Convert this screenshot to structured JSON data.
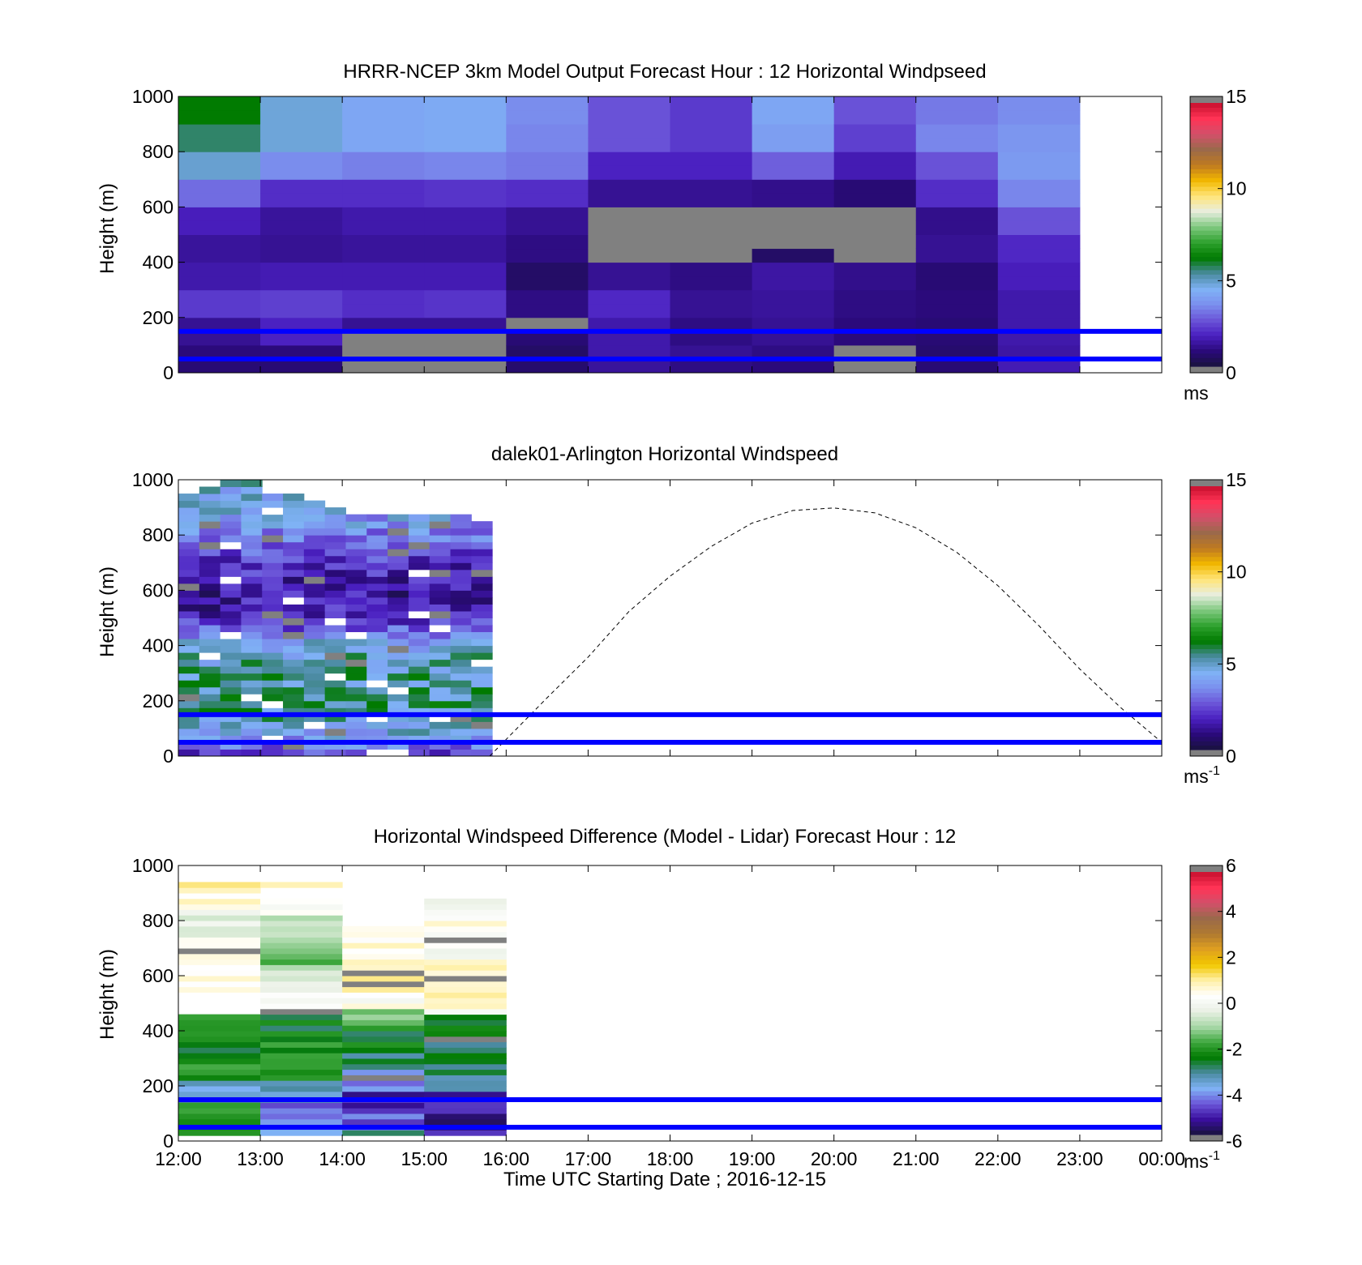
{
  "colors": {
    "hline": "#0000ff",
    "missing": "#808080",
    "speed_cmap": [
      "#18123c",
      "#2a0a7a",
      "#4a1fc0",
      "#6b55d8",
      "#7b8fee",
      "#7fb2f5",
      "#4a8aa0",
      "#007a00",
      "#2ea12e",
      "#7ec87e",
      "#e8eee0",
      "#ffe57a",
      "#f2b800",
      "#c07a20",
      "#9a6a4a",
      "#d2506a",
      "#ff3355",
      "#c8102e"
    ],
    "diff_cmap": [
      "#18123c",
      "#3a0f9e",
      "#6b55d8",
      "#7fb2f5",
      "#4a8aa0",
      "#007a00",
      "#3fa83f",
      "#a8d8a8",
      "#e9f0e4",
      "#ffffff",
      "#fff0a8",
      "#f2c800",
      "#e0a020",
      "#b07a30",
      "#9a6a4a",
      "#d2506a",
      "#ff3355",
      "#c8102e"
    ]
  },
  "chart_data": [
    {
      "type": "heatmap",
      "title": "HRRR-NCEP 3km Model Output   Forecast Hour : 12 Horizontal Windpseed",
      "ylabel": "Height (m)",
      "xlabel": "",
      "xlim": [
        12,
        24
      ],
      "ylim": [
        0,
        1000
      ],
      "x_ticks": [
        12,
        13,
        14,
        15,
        16,
        17,
        18,
        19,
        20,
        21,
        22,
        23,
        24
      ],
      "y_ticks": [
        0,
        200,
        400,
        600,
        800,
        1000
      ],
      "y_tick_labels": [
        "0",
        "200",
        "400",
        "600",
        "800",
        "1000"
      ],
      "colorbar": {
        "min": 0,
        "max": 15,
        "ticks": [
          0,
          5,
          10,
          15
        ],
        "tick_labels": [
          "0",
          "5",
          "10",
          "15"
        ],
        "unit": "ms",
        "unit_sup": ""
      },
      "hlines": [
        150,
        50
      ],
      "hour_cols": [
        {
          "start": 12,
          "profile": [
            [
              1000,
              6.2
            ],
            [
              900,
              5.6
            ],
            [
              800,
              4.8
            ],
            [
              700,
              3.0
            ],
            [
              600,
              1.7
            ],
            [
              500,
              1.3
            ],
            [
              400,
              1.5
            ],
            [
              300,
              2.2
            ],
            [
              200,
              1.2
            ],
            [
              100,
              0.9
            ],
            [
              25,
              0.8
            ]
          ]
        },
        {
          "start": 13,
          "profile": [
            [
              1000,
              4.7
            ],
            [
              900,
              4.7
            ],
            [
              800,
              3.5
            ],
            [
              700,
              2.0
            ],
            [
              600,
              1.3
            ],
            [
              500,
              1.2
            ],
            [
              400,
              1.6
            ],
            [
              300,
              2.3
            ],
            [
              200,
              1.8
            ],
            [
              100,
              0.9
            ],
            [
              25,
              0.8
            ]
          ]
        },
        {
          "start": 14,
          "profile": [
            [
              1000,
              4.1
            ],
            [
              900,
              4.1
            ],
            [
              800,
              3.3
            ],
            [
              700,
              2.0
            ],
            [
              600,
              1.5
            ],
            [
              500,
              1.3
            ],
            [
              400,
              1.6
            ],
            [
              300,
              2.0
            ],
            [
              200,
              1.2
            ],
            [
              130,
              -1
            ],
            [
              70,
              0.7
            ],
            [
              25,
              -1
            ]
          ]
        },
        {
          "start": 15,
          "profile": [
            [
              1000,
              4.2
            ],
            [
              900,
              4.2
            ],
            [
              800,
              3.4
            ],
            [
              700,
              2.1
            ],
            [
              600,
              1.5
            ],
            [
              500,
              1.3
            ],
            [
              400,
              1.6
            ],
            [
              300,
              2.1
            ],
            [
              200,
              1.2
            ],
            [
              130,
              -1
            ],
            [
              60,
              0.7
            ],
            [
              25,
              -1
            ]
          ]
        },
        {
          "start": 16,
          "profile": [
            [
              1000,
              3.5
            ],
            [
              900,
              3.4
            ],
            [
              800,
              3.2
            ],
            [
              700,
              2.0
            ],
            [
              600,
              1.2
            ],
            [
              500,
              1.0
            ],
            [
              400,
              0.6
            ],
            [
              300,
              1.0
            ],
            [
              220,
              -1
            ],
            [
              150,
              0.8
            ],
            [
              80,
              0.6
            ],
            [
              25,
              0.7
            ]
          ]
        },
        {
          "start": 17,
          "profile": [
            [
              1000,
              2.6
            ],
            [
              900,
              2.6
            ],
            [
              800,
              1.8
            ],
            [
              700,
              1.2
            ],
            [
              600,
              -1
            ],
            [
              500,
              -1
            ],
            [
              400,
              1.2
            ],
            [
              300,
              1.9
            ],
            [
              200,
              1.5
            ],
            [
              100,
              1.5
            ],
            [
              25,
              1.3
            ]
          ]
        },
        {
          "start": 18,
          "profile": [
            [
              1000,
              2.2
            ],
            [
              900,
              2.2
            ],
            [
              800,
              1.8
            ],
            [
              700,
              1.2
            ],
            [
              600,
              -1
            ],
            [
              500,
              -1
            ],
            [
              400,
              1.0
            ],
            [
              300,
              1.2
            ],
            [
              200,
              1.0
            ],
            [
              100,
              1.2
            ],
            [
              25,
              1.0
            ]
          ]
        },
        {
          "start": 19,
          "profile": [
            [
              1000,
              4.1
            ],
            [
              900,
              3.9
            ],
            [
              800,
              2.8
            ],
            [
              700,
              1.1
            ],
            [
              600,
              -1
            ],
            [
              500,
              -1
            ],
            [
              465,
              0.6
            ],
            [
              400,
              1.4
            ],
            [
              300,
              1.3
            ],
            [
              200,
              1.2
            ],
            [
              100,
              1.0
            ],
            [
              25,
              0.9
            ]
          ]
        },
        {
          "start": 20,
          "profile": [
            [
              1000,
              2.6
            ],
            [
              900,
              2.3
            ],
            [
              800,
              1.6
            ],
            [
              700,
              0.8
            ],
            [
              600,
              -1
            ],
            [
              500,
              -1
            ],
            [
              400,
              1.1
            ],
            [
              300,
              1.0
            ],
            [
              200,
              0.9
            ],
            [
              110,
              -1
            ],
            [
              60,
              0.7
            ],
            [
              25,
              -1
            ]
          ]
        },
        {
          "start": 21,
          "profile": [
            [
              1000,
              3.2
            ],
            [
              900,
              3.4
            ],
            [
              800,
              2.6
            ],
            [
              700,
              2.0
            ],
            [
              600,
              1.1
            ],
            [
              500,
              1.2
            ],
            [
              400,
              0.8
            ],
            [
              300,
              0.9
            ],
            [
              200,
              0.8
            ],
            [
              110,
              0.7
            ],
            [
              70,
              -1
            ],
            [
              25,
              0.8
            ]
          ]
        },
        {
          "start": 22,
          "profile": [
            [
              1000,
              3.5
            ],
            [
              900,
              3.7
            ],
            [
              800,
              3.8
            ],
            [
              700,
              3.4
            ],
            [
              600,
              2.6
            ],
            [
              500,
              1.9
            ],
            [
              400,
              1.7
            ],
            [
              300,
              1.5
            ],
            [
              200,
              1.5
            ],
            [
              100,
              1.4
            ],
            [
              25,
              1.6
            ]
          ]
        }
      ]
    },
    {
      "type": "heatmap",
      "title": "dalek01-Arlington  Horizontal Windspeed",
      "ylabel": "Height (m)",
      "xlabel": "",
      "xlim": [
        12,
        24
      ],
      "ylim": [
        0,
        1000
      ],
      "x_ticks": [
        12,
        13,
        14,
        15,
        16,
        17,
        18,
        19,
        20,
        21,
        22,
        23,
        24
      ],
      "y_ticks": [
        0,
        200,
        400,
        600,
        800,
        1000
      ],
      "y_tick_labels": [
        "0",
        "200",
        "400",
        "600",
        "800",
        "1000"
      ],
      "colorbar": {
        "min": 0,
        "max": 15,
        "ticks": [
          0,
          5,
          10,
          15
        ],
        "tick_labels": [
          "0",
          "5",
          "10",
          "15"
        ],
        "unit": "ms",
        "unit_sup": "-1"
      },
      "hlines": [
        150,
        50
      ],
      "lidar": {
        "x_start": 12,
        "x_end": 15.83,
        "y_start": 0,
        "y_end": 1000,
        "cols": 15,
        "rows": 40,
        "col_tops": [
          950,
          980,
          1000,
          1000,
          950,
          940,
          920,
          900,
          880,
          880,
          880,
          870,
          870,
          870,
          860
        ],
        "profile": [
          [
            1000,
            4.8
          ],
          [
            900,
            4.2
          ],
          [
            800,
            3.4
          ],
          [
            700,
            2.1
          ],
          [
            600,
            1.4
          ],
          [
            500,
            1.7
          ],
          [
            400,
            4.6
          ],
          [
            300,
            5.2
          ],
          [
            200,
            5.4
          ],
          [
            100,
            4.7
          ],
          [
            50,
            3.5
          ],
          [
            10,
            2.4
          ]
        ]
      },
      "curve": {
        "x": [
          15.8,
          16.5,
          17.0,
          17.5,
          18.0,
          18.5,
          19.0,
          19.5,
          20.0,
          20.5,
          21.0,
          21.5,
          22.0,
          22.5,
          23.0,
          23.5,
          24.0
        ],
        "y": [
          0,
          211,
          358,
          524,
          651,
          758,
          843,
          889,
          898,
          880,
          826,
          737,
          617,
          472,
          315,
          175,
          50
        ]
      }
    },
    {
      "type": "heatmap",
      "title": "Horizontal Windspeed Difference (Model - Lidar) Forecast Hour : 12",
      "ylabel": "Height (m)",
      "xlabel": "Time UTC  Starting Date ; 2016-12-15",
      "xlim": [
        12,
        24
      ],
      "ylim": [
        0,
        1000
      ],
      "x_ticks": [
        12,
        13,
        14,
        15,
        16,
        17,
        18,
        19,
        20,
        21,
        22,
        23,
        24
      ],
      "x_tick_labels": [
        "12:00",
        "13:00",
        "14:00",
        "15:00",
        "16:00",
        "17:00",
        "18:00",
        "19:00",
        "20:00",
        "21:00",
        "22:00",
        "23:00",
        "00:00"
      ],
      "y_ticks": [
        0,
        200,
        400,
        600,
        800,
        1000
      ],
      "y_tick_labels": [
        "0",
        "200",
        "400",
        "600",
        "800",
        "1000"
      ],
      "colorbar": {
        "min": -6,
        "max": 6,
        "ticks": [
          -6,
          -4,
          -2,
          0,
          2,
          4,
          6
        ],
        "tick_labels": [
          "-6",
          "-4",
          "-2",
          "0",
          "2",
          "4",
          "6"
        ],
        "unit": "ms",
        "unit_sup": "-1"
      },
      "hlines": [
        150,
        50
      ],
      "diff_cols": [
        {
          "start": 12,
          "top": 930,
          "gap": [
            460,
            540
          ],
          "profile": [
            [
              930,
              0.9
            ],
            [
              850,
              0.3
            ],
            [
              780,
              -0.5
            ],
            [
              700,
              0.5
            ],
            [
              600,
              0.8
            ],
            [
              540,
              0.6
            ],
            [
              450,
              -1.8
            ],
            [
              350,
              -2.4
            ],
            [
              250,
              -2.2
            ],
            [
              180,
              -3.6
            ],
            [
              120,
              -2.3
            ],
            [
              60,
              -2.6
            ],
            [
              20,
              -2.4
            ]
          ]
        },
        {
          "start": 13,
          "top": 925,
          "gap": [
            885,
            920
          ],
          "profile": [
            [
              925,
              0.8
            ],
            [
              850,
              0.2
            ],
            [
              780,
              -1.0
            ],
            [
              700,
              -1.4
            ],
            [
              600,
              -0.6
            ],
            [
              500,
              0.2
            ],
            [
              440,
              -2.5
            ],
            [
              350,
              -2.1
            ],
            [
              250,
              -2.3
            ],
            [
              180,
              -3.5
            ],
            [
              100,
              -4.3
            ],
            [
              40,
              -3.8
            ]
          ]
        },
        {
          "start": 14,
          "top": 775,
          "gap": null,
          "profile": [
            [
              775,
              0.5
            ],
            [
              700,
              0.8
            ],
            [
              600,
              1.0
            ],
            [
              500,
              0.4
            ],
            [
              450,
              -1.2
            ],
            [
              380,
              -2.5
            ],
            [
              300,
              -2.8
            ],
            [
              220,
              -4.0
            ],
            [
              150,
              -5.0
            ],
            [
              80,
              -4.6
            ],
            [
              20,
              -3.0
            ]
          ]
        },
        {
          "start": 15,
          "top": 870,
          "gap": null,
          "profile": [
            [
              870,
              0.2
            ],
            [
              780,
              0.6
            ],
            [
              700,
              0.0
            ],
            [
              600,
              1.2
            ],
            [
              500,
              0.4
            ],
            [
              440,
              -2.6
            ],
            [
              350,
              -2.8
            ],
            [
              250,
              -3.0
            ],
            [
              200,
              -3.6
            ],
            [
              150,
              -5.0
            ],
            [
              80,
              -5.4
            ],
            [
              20,
              -5.2
            ]
          ]
        }
      ]
    }
  ]
}
